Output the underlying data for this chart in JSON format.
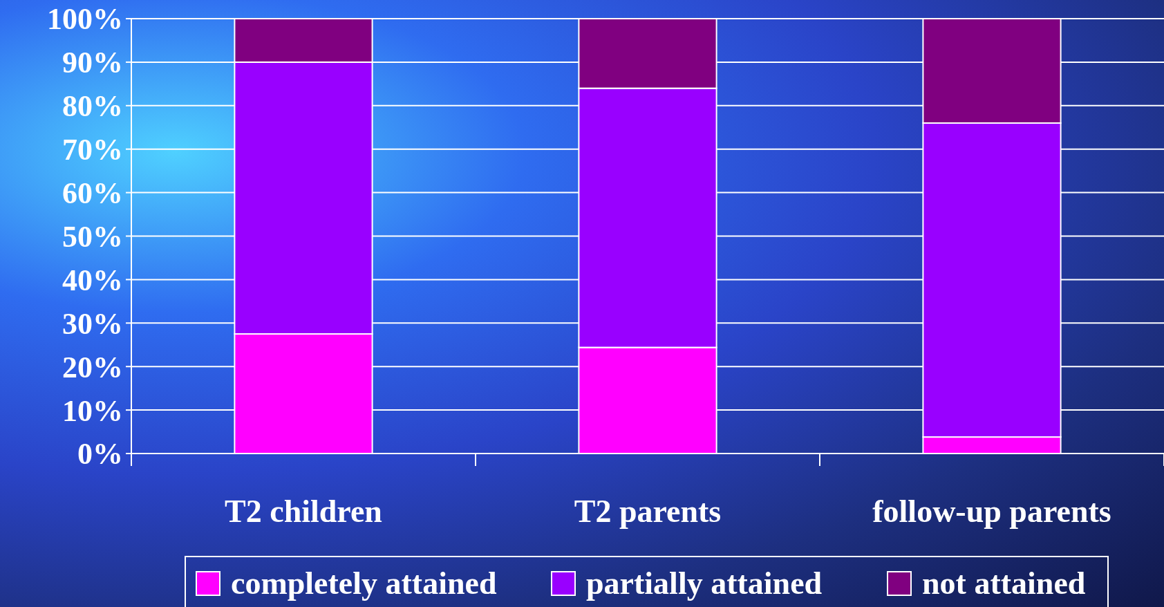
{
  "chart_data": {
    "type": "bar",
    "stacked": true,
    "categories": [
      "T2 children",
      "T2 parents",
      "follow-up parents"
    ],
    "series": [
      {
        "name": "completely attained",
        "color": "#ff00ff",
        "values": [
          27.5,
          24.4,
          3.8
        ]
      },
      {
        "name": "partially attained",
        "color": "#9900ff",
        "values": [
          62.5,
          59.6,
          72.2
        ]
      },
      {
        "name": "not attained",
        "color": "#800080",
        "values": [
          10,
          16,
          24
        ]
      }
    ],
    "ylim": [
      0,
      100
    ],
    "yticks": [
      {
        "value": 0,
        "label": "0%"
      },
      {
        "value": 10,
        "label": "10%"
      },
      {
        "value": 20,
        "label": "20%"
      },
      {
        "value": 30,
        "label": "30%"
      },
      {
        "value": 40,
        "label": "40%"
      },
      {
        "value": 50,
        "label": "50%"
      },
      {
        "value": 60,
        "label": "60%"
      },
      {
        "value": 70,
        "label": "70%"
      },
      {
        "value": 80,
        "label": "80%"
      },
      {
        "value": 90,
        "label": "90%"
      },
      {
        "value": 100,
        "label": "100%"
      }
    ],
    "grid": "y",
    "legend": "bottom"
  }
}
